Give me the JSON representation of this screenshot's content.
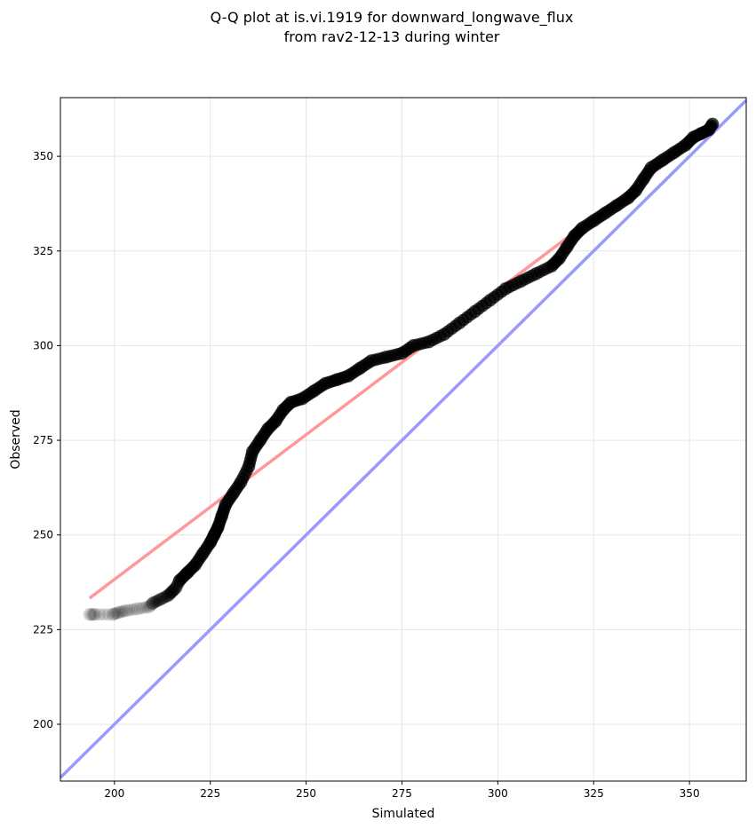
{
  "chart_data": {
    "type": "scatter",
    "title_line1": "Q-Q plot at is.vi.1919 for downward_longwave_flux",
    "title_line2": "from rav2-12-13 during winter",
    "xlabel": "Simulated",
    "ylabel": "Observed",
    "xlim": [
      185.9,
      364.8
    ],
    "ylim": [
      185.0,
      365.5
    ],
    "xticks": [
      200,
      225,
      250,
      275,
      300,
      325,
      350
    ],
    "yticks": [
      200,
      225,
      250,
      275,
      300,
      325,
      350
    ],
    "grid": true,
    "colors": {
      "points": "#000000",
      "fit_line": "#ff9999",
      "identity_line": "#9999ff"
    },
    "fit_line": {
      "x": [
        193.5,
        356.0
      ],
      "y": [
        233.3,
        357.5
      ]
    },
    "identity_line": {
      "x": [
        185.9,
        364.8
      ],
      "y": [
        185.9,
        364.8
      ]
    },
    "points": [
      [
        193.5,
        229
      ],
      [
        195,
        229
      ],
      [
        199.5,
        229
      ],
      [
        201,
        229.5
      ],
      [
        203,
        230
      ],
      [
        206,
        230.5
      ],
      [
        209,
        231
      ],
      [
        210,
        232
      ],
      [
        212,
        233
      ],
      [
        214,
        234
      ],
      [
        215,
        235
      ],
      [
        216,
        236
      ],
      [
        217,
        238
      ],
      [
        219,
        240
      ],
      [
        221,
        242
      ],
      [
        223,
        245
      ],
      [
        225,
        248
      ],
      [
        226,
        250
      ],
      [
        227,
        252
      ],
      [
        228,
        255
      ],
      [
        229,
        258
      ],
      [
        231,
        261
      ],
      [
        233,
        264
      ],
      [
        235,
        268
      ],
      [
        236,
        272
      ],
      [
        238,
        275
      ],
      [
        240,
        278
      ],
      [
        242,
        280
      ],
      [
        244,
        283
      ],
      [
        246,
        285
      ],
      [
        249,
        286
      ],
      [
        252,
        288
      ],
      [
        255,
        290
      ],
      [
        258,
        291
      ],
      [
        261,
        292
      ],
      [
        264,
        294
      ],
      [
        267,
        296
      ],
      [
        271,
        297
      ],
      [
        275,
        298
      ],
      [
        278,
        300
      ],
      [
        282,
        301
      ],
      [
        286,
        303
      ],
      [
        290,
        306
      ],
      [
        294,
        309
      ],
      [
        298,
        312
      ],
      [
        302,
        315
      ],
      [
        306,
        317
      ],
      [
        310,
        319
      ],
      [
        314,
        321
      ],
      [
        316,
        323
      ],
      [
        318,
        326
      ],
      [
        320,
        329
      ],
      [
        322,
        331
      ],
      [
        325,
        333
      ],
      [
        328,
        335
      ],
      [
        331,
        337
      ],
      [
        334,
        339
      ],
      [
        336,
        341
      ],
      [
        338,
        344
      ],
      [
        340,
        347
      ],
      [
        343,
        349
      ],
      [
        346,
        351
      ],
      [
        349,
        353
      ],
      [
        351,
        355
      ],
      [
        353,
        356
      ],
      [
        355,
        357
      ],
      [
        356,
        358.5
      ]
    ]
  }
}
